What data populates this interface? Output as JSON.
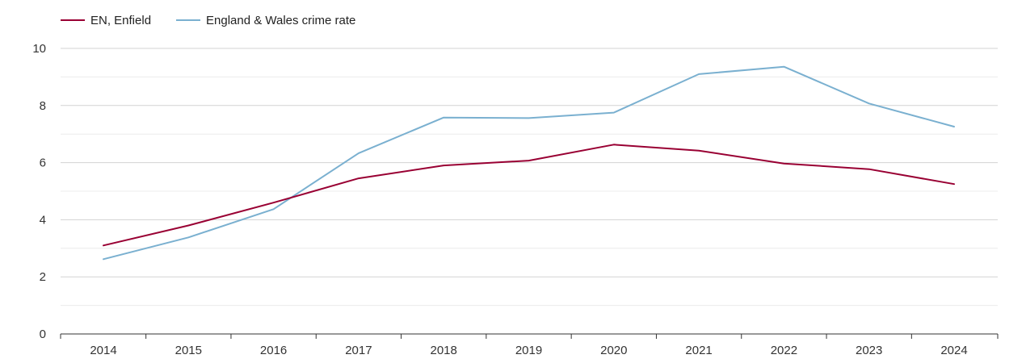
{
  "chart_data": {
    "type": "line",
    "title": "",
    "xlabel": "",
    "ylabel": "",
    "x": [
      "2014",
      "2015",
      "2016",
      "2017",
      "2018",
      "2019",
      "2020",
      "2021",
      "2022",
      "2023",
      "2024"
    ],
    "ylim": [
      0,
      10
    ],
    "yticks": [
      0,
      2,
      4,
      6,
      8,
      10
    ],
    "minor_gridlines": [
      1,
      3,
      5,
      7,
      9
    ],
    "grid": true,
    "legend_position": "top-left",
    "series": [
      {
        "name": "EN, Enfield",
        "color": "#990033",
        "values": [
          3.1,
          3.8,
          4.6,
          5.45,
          5.9,
          6.07,
          6.63,
          6.42,
          5.97,
          5.77,
          5.25
        ]
      },
      {
        "name": "England & Wales crime rate",
        "color": "#7ab0d0",
        "values": [
          2.62,
          3.38,
          4.37,
          6.33,
          7.58,
          7.56,
          7.75,
          9.1,
          9.36,
          8.07,
          7.26
        ]
      }
    ]
  }
}
